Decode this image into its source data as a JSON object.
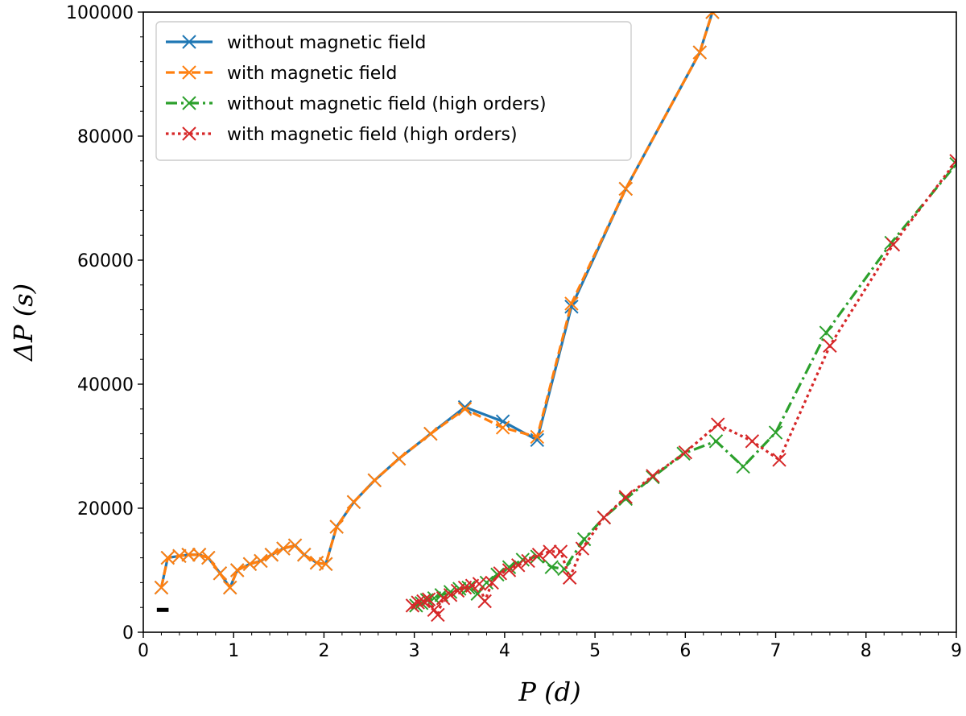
{
  "chart_data": {
    "type": "line",
    "title": "",
    "xlabel": "P (d)",
    "ylabel": "ΔP (s)",
    "xlim": [
      0,
      9
    ],
    "ylim": [
      0,
      100000
    ],
    "x_ticks": [
      "0",
      "1",
      "2",
      "3",
      "4",
      "5",
      "6",
      "7",
      "8",
      "9"
    ],
    "y_ticks": [
      "0",
      "20000",
      "40000",
      "60000",
      "80000",
      "100000"
    ],
    "grid": false,
    "legend_position": "top-left",
    "series": [
      {
        "name": "without magnetic field",
        "color": "#1f77b4",
        "dash": "solid",
        "x": [
          0.2,
          0.27,
          0.4,
          0.5,
          0.62,
          0.72,
          0.85,
          0.96,
          1.04,
          1.18,
          1.3,
          1.42,
          1.55,
          1.68,
          1.78,
          1.92,
          2.02,
          2.14,
          2.33,
          2.56,
          2.83,
          3.18,
          3.56,
          3.98,
          4.36,
          4.74,
          5.34,
          6.16,
          6.3
        ],
        "y": [
          7200,
          12000,
          12300,
          12500,
          12500,
          12000,
          9500,
          7200,
          10000,
          11000,
          11500,
          12500,
          13500,
          14000,
          12500,
          11200,
          11000,
          17000,
          21000,
          24500,
          28000,
          32000,
          36300,
          34000,
          31000,
          52500,
          71500,
          93500,
          100000
        ]
      },
      {
        "name": "with magnetic field",
        "color": "#ff7f0e",
        "dash": "dashed",
        "x": [
          0.2,
          0.27,
          0.4,
          0.5,
          0.62,
          0.72,
          0.85,
          0.96,
          1.04,
          1.18,
          1.3,
          1.42,
          1.55,
          1.68,
          1.78,
          1.92,
          2.02,
          2.14,
          2.33,
          2.56,
          2.83,
          3.18,
          3.56,
          3.98,
          4.36,
          4.74,
          5.34,
          6.16,
          6.3
        ],
        "y": [
          7200,
          12000,
          12300,
          12500,
          12500,
          12000,
          9500,
          7200,
          10000,
          11000,
          11500,
          12500,
          13500,
          14000,
          12500,
          11200,
          11000,
          17000,
          21000,
          24500,
          28000,
          32000,
          36000,
          33000,
          31500,
          53000,
          71500,
          93500,
          100000
        ]
      },
      {
        "name": "without magnetic field (high orders)",
        "color": "#2ca02c",
        "dash": "dashdot",
        "x": [
          3.02,
          3.08,
          3.14,
          3.22,
          3.3,
          3.4,
          3.5,
          3.6,
          3.7,
          3.8,
          3.92,
          4.05,
          4.2,
          4.36,
          4.52,
          4.66,
          4.88,
          5.1,
          5.34,
          5.64,
          5.98,
          6.34,
          6.64,
          7.0,
          7.56,
          8.28,
          9.0
        ],
        "y": [
          4300,
          4700,
          5200,
          5500,
          6000,
          6500,
          7000,
          7200,
          6200,
          8000,
          9300,
          10500,
          11700,
          12200,
          10500,
          10200,
          15000,
          18500,
          21500,
          25000,
          28800,
          30800,
          26700,
          32200,
          48300,
          62800,
          75500
        ]
      },
      {
        "name": "with magnetic field (high orders)",
        "color": "#d62728",
        "dash": "dotted",
        "x": [
          2.98,
          3.04,
          3.1,
          3.16,
          3.22,
          3.26,
          3.32,
          3.4,
          3.48,
          3.56,
          3.64,
          3.72,
          3.78,
          3.86,
          3.95,
          4.05,
          4.15,
          4.26,
          4.38,
          4.5,
          4.62,
          4.72,
          4.86,
          5.1,
          5.34,
          5.64,
          6.0,
          6.36,
          6.74,
          7.04,
          7.6,
          8.3,
          9.0
        ],
        "y": [
          4300,
          4800,
          5000,
          5300,
          3600,
          2800,
          5500,
          6000,
          6700,
          7200,
          7500,
          7800,
          5000,
          8000,
          9500,
          10000,
          10800,
          11500,
          12500,
          13000,
          13000,
          8800,
          13500,
          18500,
          21800,
          25200,
          29000,
          33500,
          30800,
          27800,
          46200,
          62500,
          76000
        ]
      }
    ],
    "annotations": [
      {
        "type": "short horizontal bar",
        "x": [
          0.15,
          0.28
        ],
        "y": 3600
      }
    ]
  }
}
